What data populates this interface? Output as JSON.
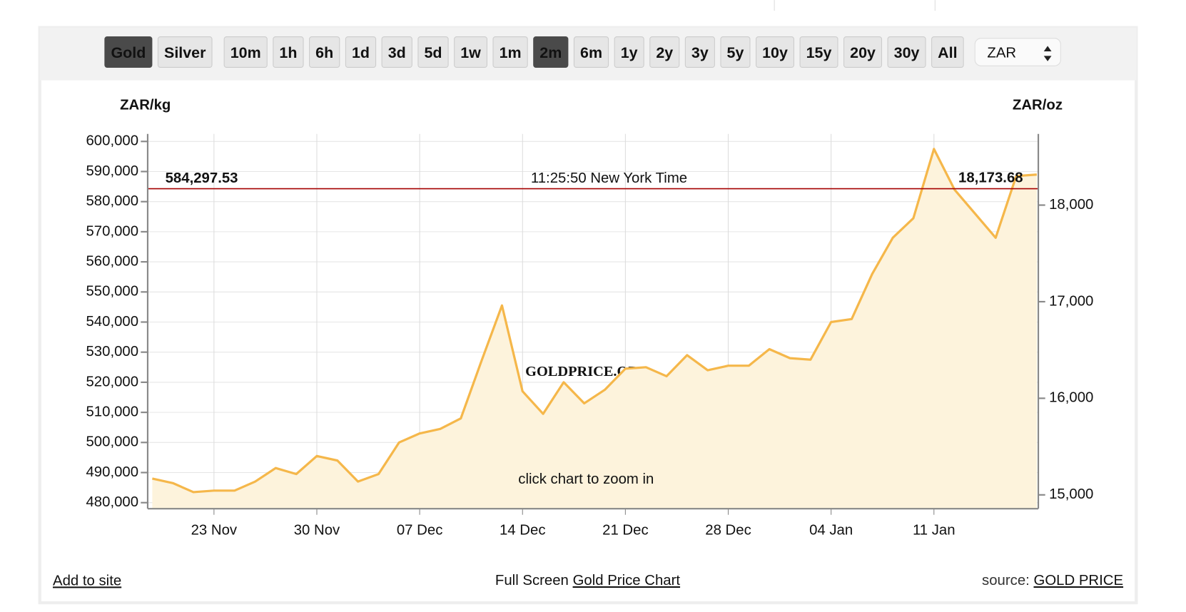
{
  "controls": {
    "metals": [
      "Gold",
      "Silver"
    ],
    "active_metal": "Gold",
    "ranges": [
      "10m",
      "1h",
      "6h",
      "1d",
      "3d",
      "5d",
      "1w",
      "1m",
      "2m",
      "6m",
      "1y",
      "2y",
      "3y",
      "5y",
      "10y",
      "15y",
      "20y",
      "30y",
      "All"
    ],
    "active_range": "2m",
    "currency": "ZAR"
  },
  "chart_data": {
    "type": "area",
    "ylabel": "ZAR/kg",
    "y2label": "ZAR/oz",
    "categories": [
      null,
      null,
      null,
      "23 Nov",
      null,
      null,
      null,
      null,
      "30 Nov",
      null,
      null,
      null,
      null,
      "07 Dec",
      null,
      null,
      null,
      null,
      "14 Dec",
      null,
      null,
      null,
      null,
      "21 Dec",
      null,
      null,
      null,
      null,
      "28 Dec",
      null,
      null,
      null,
      null,
      "04 Jan",
      null,
      null,
      null,
      null,
      "11 Jan",
      null,
      null,
      null,
      null,
      null
    ],
    "series": [
      {
        "name": "Gold",
        "color": "#f5b74a",
        "fill": "#fdf3dc",
        "values": [
          488000,
          486500,
          483500,
          484000,
          484000,
          487000,
          491500,
          489500,
          495500,
          494000,
          487000,
          489500,
          500000,
          503000,
          504500,
          508000,
          527000,
          545500,
          517000,
          509500,
          520000,
          513000,
          517500,
          524500,
          525000,
          522000,
          529000,
          524000,
          525500,
          525500,
          531000,
          528000,
          527500,
          540000,
          541000,
          556000,
          568000,
          574500,
          597500,
          584000,
          576000,
          568000,
          588500,
          589000
        ]
      }
    ],
    "ylim": [
      478000,
      602500
    ],
    "yticks": [
      {
        "value": 480000,
        "label": "480,000"
      },
      {
        "value": 490000,
        "label": "490,000"
      },
      {
        "value": 500000,
        "label": "500,000"
      },
      {
        "value": 510000,
        "label": "510,000"
      },
      {
        "value": 520000,
        "label": "520,000"
      },
      {
        "value": 530000,
        "label": "530,000"
      },
      {
        "value": 540000,
        "label": "540,000"
      },
      {
        "value": 550000,
        "label": "550,000"
      },
      {
        "value": 560000,
        "label": "560,000"
      },
      {
        "value": 570000,
        "label": "570,000"
      },
      {
        "value": 580000,
        "label": "580,000"
      },
      {
        "value": 590000,
        "label": "590,000"
      },
      {
        "value": 600000,
        "label": "600,000"
      }
    ],
    "y2lim": [
      14857,
      18737
    ],
    "y2ticks": [
      {
        "value": 15000,
        "label": "15,000"
      },
      {
        "value": 16000,
        "label": "16,000"
      },
      {
        "value": 17000,
        "label": "17,000"
      },
      {
        "value": 18000,
        "label": "18,000"
      }
    ],
    "grid": true,
    "price_line": {
      "value": 584297.53,
      "label": "584,297.53",
      "color": "#a50000"
    },
    "price_line_y2": {
      "value": 18173.68,
      "label": "18,173.68"
    },
    "time_label": "11:25:50 New York Time",
    "watermark": "GOLDPRICE.ORG",
    "hint": "click chart to zoom in"
  },
  "footer": {
    "add": "Add to site",
    "full_screen": "Full Screen",
    "chart_link": "Gold Price Chart",
    "source": "source:",
    "source_link": "GOLD PRICE"
  }
}
